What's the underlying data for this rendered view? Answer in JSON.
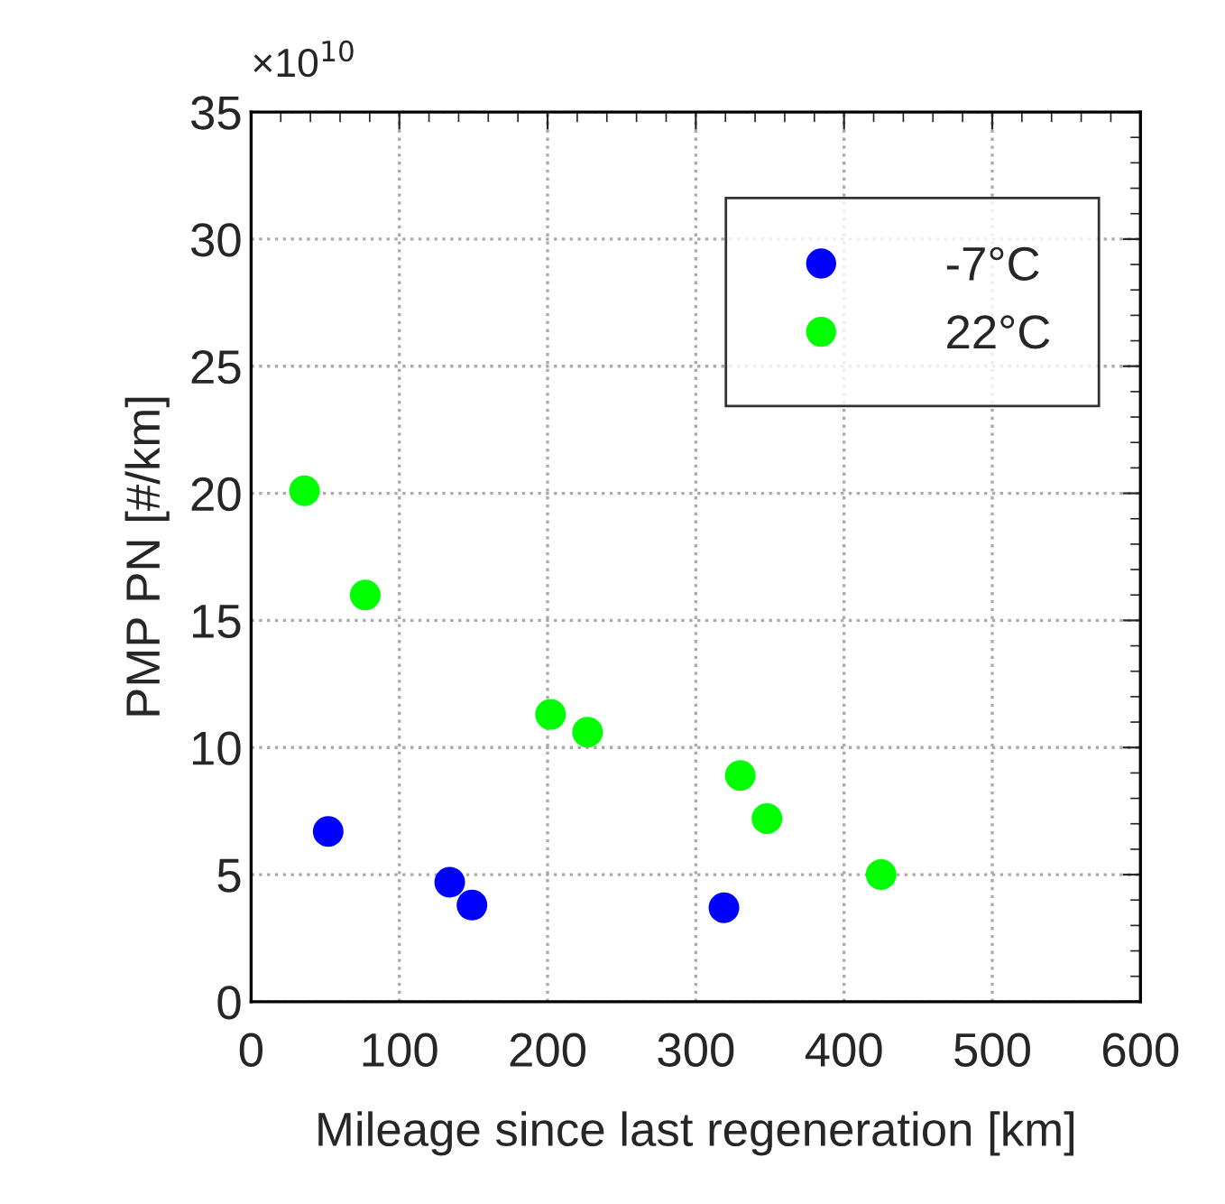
{
  "chart_data": {
    "type": "scatter",
    "xlabel": "Mileage since last regeneration [km]",
    "ylabel": "PMP PN [#/km]",
    "annotations": [
      "×10$^{10}$"
    ],
    "series": [
      {
        "name": "-7°C",
        "color": "#0000ff",
        "x": [
          52,
          134,
          149,
          319
        ],
        "values": [
          6.7,
          4.7,
          3.8,
          3.7
        ]
      },
      {
        "name": "22°C",
        "color": "#00ff00",
        "x": [
          36,
          77,
          202,
          227,
          330,
          348,
          425
        ],
        "values": [
          20.1,
          16.0,
          11.3,
          10.6,
          8.9,
          7.2,
          5.0
        ]
      }
    ],
    "xlim": [
      0,
      600
    ],
    "xticks": [
      0,
      100,
      200,
      300,
      400,
      500,
      600
    ],
    "ylim": [
      0,
      35
    ],
    "yticks": [
      0,
      5,
      10,
      15,
      20,
      25,
      30,
      35
    ],
    "grid": true,
    "legend": "top right",
    "marker": "circle"
  }
}
